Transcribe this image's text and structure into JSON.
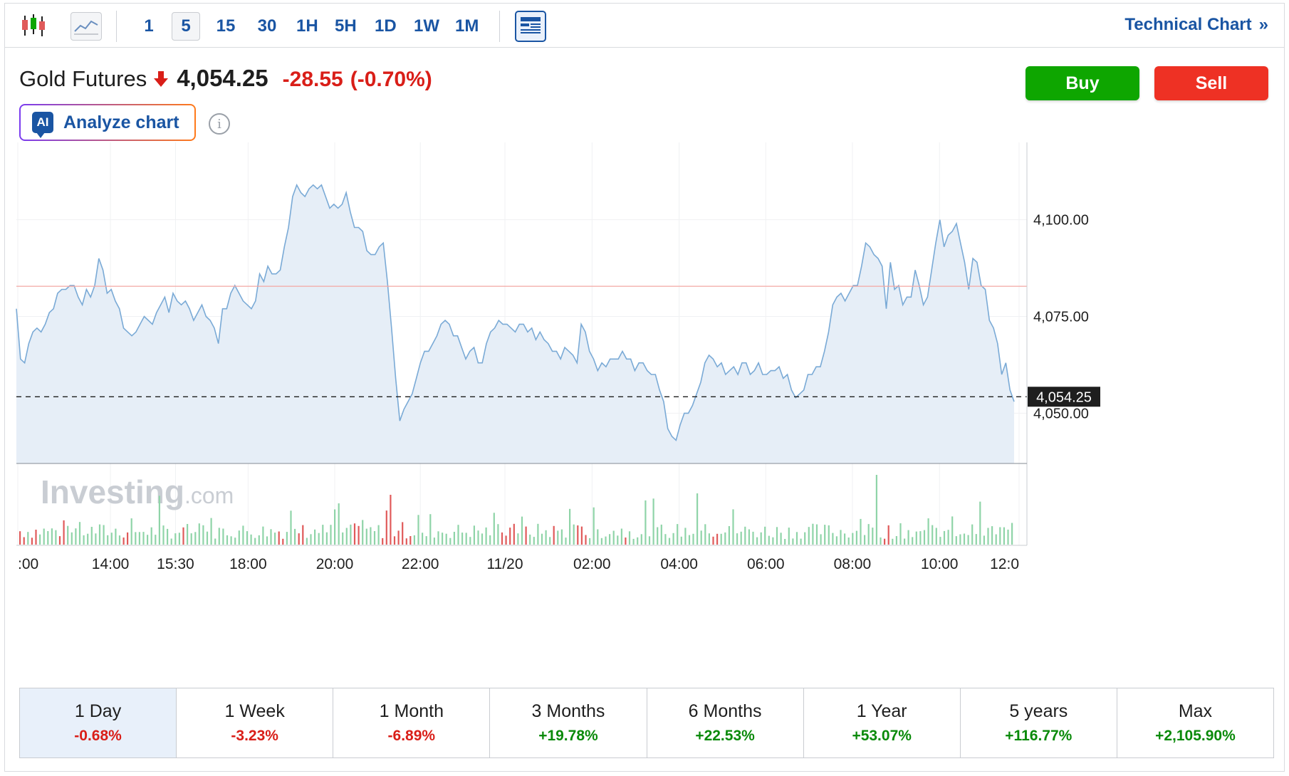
{
  "toolbar": {
    "intervals": [
      "1",
      "5",
      "15",
      "30",
      "1H",
      "5H",
      "1D",
      "1W",
      "1M"
    ],
    "active_interval": "5",
    "technical_chart_label": "Technical Chart",
    "technical_chart_chevron": "»"
  },
  "instrument": {
    "name": "Gold Futures",
    "direction_icon": "down-arrow-icon",
    "last_price": "4,054.25",
    "change": "-28.55",
    "change_pct": "(-0.70%)"
  },
  "actions": {
    "buy_label": "Buy",
    "sell_label": "Sell",
    "analyze_badge": "AI",
    "analyze_label": "Analyze chart",
    "info_glyph": "i"
  },
  "watermark": {
    "brand": "Investing",
    "suffix": ".com"
  },
  "colors": {
    "line": "#7aaad6",
    "area": "#e6eef7",
    "prev_close": "#f4a7a3",
    "vol_up": "#8fd4a8",
    "vol_down": "#e05a5a",
    "buy": "#0ea600",
    "sell": "#ee3124",
    "accent": "#1a55a3"
  },
  "chart_data": {
    "type": "area",
    "ylim": [
      4037,
      4120
    ],
    "y_ticks": [
      "4,100.00",
      "4,075.00",
      "4,050.00"
    ],
    "y_tick_values": [
      4100,
      4075,
      4050
    ],
    "x_tick_labels": [
      ":00",
      "14:00",
      "15:30",
      "18:00",
      "20:00",
      "22:00",
      "11/20",
      "02:00",
      "04:00",
      "06:00",
      "08:00",
      "10:00",
      "12:0"
    ],
    "x_tick_positions": [
      0,
      0.0925,
      0.1575,
      0.23,
      0.3165,
      0.402,
      0.4865,
      0.5735,
      0.6605,
      0.747,
      0.8335,
      0.9205,
      1.0
    ],
    "current_price_label": "4,054.25",
    "current_price": 4054.25,
    "previous_close": 4082.8,
    "grid": true,
    "series": [
      {
        "values": [
          4077,
          4064,
          4063,
          4068,
          4071,
          4072,
          4071,
          4073,
          4076,
          4077,
          4081,
          4082,
          4082,
          4083,
          4083,
          4080,
          4078,
          4082,
          4080,
          4083,
          4090,
          4087,
          4081,
          4082,
          4079,
          4077,
          4072,
          4071,
          4070,
          4071,
          4073,
          4075,
          4074,
          4073,
          4076,
          4078,
          4080,
          4076,
          4081,
          4079,
          4078,
          4079,
          4077,
          4074,
          4076,
          4078,
          4075,
          4074,
          4072,
          4068,
          4077,
          4077,
          4081,
          4083,
          4081,
          4079,
          4078,
          4077,
          4079,
          4086,
          4084,
          4088,
          4086,
          4086,
          4087,
          4093,
          4098,
          4106,
          4109,
          4107,
          4106,
          4108,
          4109,
          4108,
          4109,
          4106,
          4103,
          4104,
          4103,
          4104,
          4107,
          4102,
          4098,
          4098,
          4097,
          4092,
          4091,
          4091,
          4093,
          4094,
          4084,
          4072,
          4059,
          4048,
          4051,
          4053,
          4055,
          4059,
          4063,
          4066,
          4066,
          4068,
          4070,
          4073,
          4074,
          4073,
          4070,
          4070,
          4067,
          4064,
          4066,
          4067,
          4063,
          4063,
          4068,
          4071,
          4072,
          4074,
          4073,
          4073,
          4072,
          4071,
          4073,
          4073,
          4071,
          4072,
          4069,
          4071,
          4069,
          4068,
          4066,
          4066,
          4064,
          4067,
          4066,
          4065,
          4063,
          4073,
          4071,
          4066,
          4064,
          4061,
          4063,
          4062,
          4064,
          4064,
          4064,
          4066,
          4064,
          4064,
          4061,
          4063,
          4063,
          4061,
          4060,
          4060,
          4056,
          4053,
          4046,
          4044,
          4043,
          4047,
          4050,
          4050,
          4052,
          4055,
          4058,
          4063,
          4065,
          4064,
          4062,
          4063,
          4060,
          4061,
          4062,
          4060,
          4063,
          4063,
          4060,
          4061,
          4063,
          4060,
          4060,
          4061,
          4061,
          4062,
          4059,
          4060,
          4056,
          4054,
          4055,
          4056,
          4060,
          4060,
          4062,
          4062,
          4066,
          4071,
          4078,
          4080,
          4081,
          4079,
          4081,
          4083,
          4083,
          4088,
          4094,
          4093,
          4091,
          4090,
          4088,
          4077,
          4089,
          4082,
          4083,
          4078,
          4080,
          4080,
          4087,
          4083,
          4078,
          4080,
          4087,
          4094,
          4100,
          4093,
          4096,
          4097,
          4099,
          4094,
          4089,
          4082,
          4090,
          4089,
          4083,
          4082,
          4074,
          4072,
          4068,
          4060,
          4063,
          4056,
          4053
        ]
      }
    ],
    "volume": {
      "up_or_down": "ddudduuuuudduuuuuuuuuuuuuudduuuuuuuuuuuuuduuuuuuuuuuuuuuuuuuuuuuudduuudduuuuuuuuuuuudduuuuudddddddduuuuuuuuuuuuuuuuuuuuuudddduuduuuuuuduuuuuddduuuuuuuuuduuuuuuuuuuuuuuuuuuuuudduuuuuuuuuuuuuuuuuuuuuuuuuuuuuuuuuuuuuuuuudduuuuuuuuuuuuuuuuuuuuuuuuuuuuuuuuuuuuuuuuuuuuuuuuuuuuuuuuuuuu",
      "max": 100
    }
  },
  "periods": [
    {
      "label": "1 Day",
      "value": "-0.68%",
      "trend": "neg",
      "active": true
    },
    {
      "label": "1 Week",
      "value": "-3.23%",
      "trend": "neg",
      "active": false
    },
    {
      "label": "1 Month",
      "value": "-6.89%",
      "trend": "neg",
      "active": false
    },
    {
      "label": "3 Months",
      "value": "+19.78%",
      "trend": "pos",
      "active": false
    },
    {
      "label": "6 Months",
      "value": "+22.53%",
      "trend": "pos",
      "active": false
    },
    {
      "label": "1 Year",
      "value": "+53.07%",
      "trend": "pos",
      "active": false
    },
    {
      "label": "5 years",
      "value": "+116.77%",
      "trend": "pos",
      "active": false
    },
    {
      "label": "Max",
      "value": "+2,105.90%",
      "trend": "pos",
      "active": false
    }
  ]
}
